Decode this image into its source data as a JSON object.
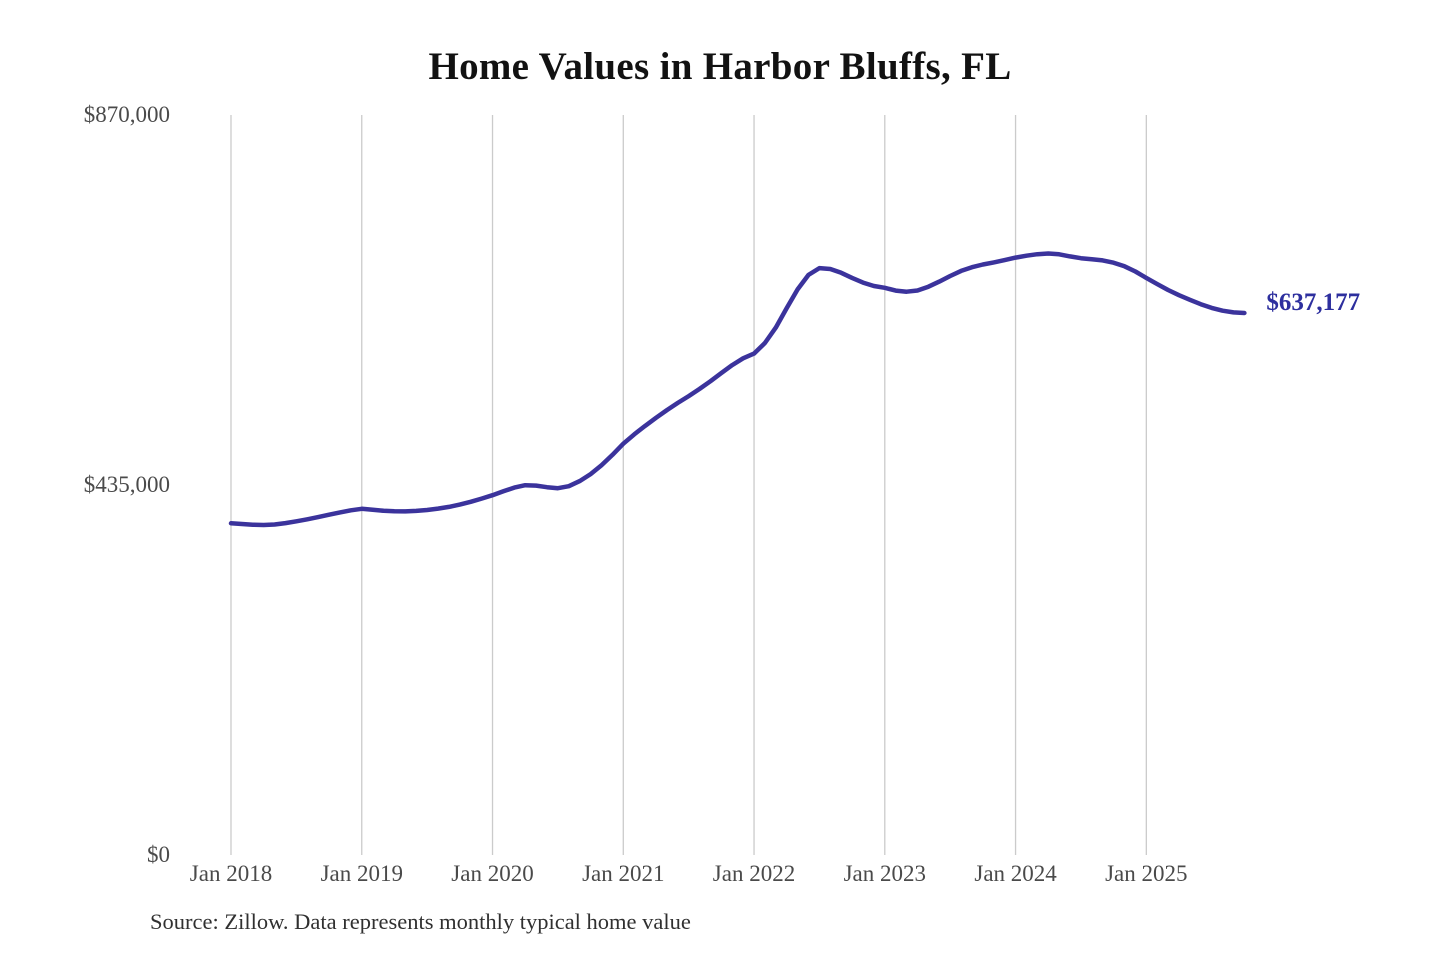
{
  "title": "Home Values in Harbor Bluffs, FL",
  "source_note": "Source: Zillow. Data represents monthly typical home value",
  "colors": {
    "line": "#3b339c",
    "end_label": "#2d2f9e",
    "gridline": "#cbcbcb",
    "title": "#121212",
    "axis_label": "#4a4a4a",
    "source": "#303030",
    "background": "#ffffff"
  },
  "chart_data": {
    "type": "line",
    "title": "Home Values in Harbor Bluffs, FL",
    "xlabel": "",
    "ylabel": "",
    "legend": "none",
    "grid": "vertical-only",
    "ylim": [
      0,
      870000
    ],
    "y_ticks": [
      {
        "label": "$0",
        "value": 0
      },
      {
        "label": "$435,000",
        "value": 435000
      },
      {
        "label": "$870,000",
        "value": 870000
      }
    ],
    "x_tick_labels": [
      "Jan 2018",
      "Jan 2019",
      "Jan 2020",
      "Jan 2021",
      "Jan 2022",
      "Jan 2023",
      "Jan 2024",
      "Jan 2025"
    ],
    "final_value": 637177,
    "final_value_label": "$637,177",
    "months": [
      "Jan 2018",
      "Feb 2018",
      "Mar 2018",
      "Apr 2018",
      "May 2018",
      "Jun 2018",
      "Jul 2018",
      "Aug 2018",
      "Sep 2018",
      "Oct 2018",
      "Nov 2018",
      "Dec 2018",
      "Jan 2019",
      "Feb 2019",
      "Mar 2019",
      "Apr 2019",
      "May 2019",
      "Jun 2019",
      "Jul 2019",
      "Aug 2019",
      "Sep 2019",
      "Oct 2019",
      "Nov 2019",
      "Dec 2019",
      "Jan 2020",
      "Feb 2020",
      "Mar 2020",
      "Apr 2020",
      "May 2020",
      "Jun 2020",
      "Jul 2020",
      "Aug 2020",
      "Sep 2020",
      "Oct 2020",
      "Nov 2020",
      "Dec 2020",
      "Jan 2021",
      "Feb 2021",
      "Mar 2021",
      "Apr 2021",
      "May 2021",
      "Jun 2021",
      "Jul 2021",
      "Aug 2021",
      "Sep 2021",
      "Oct 2021",
      "Nov 2021",
      "Dec 2021",
      "Jan 2022",
      "Feb 2022",
      "Mar 2022",
      "Apr 2022",
      "May 2022",
      "Jun 2022",
      "Jul 2022",
      "Aug 2022",
      "Sep 2022",
      "Oct 2022",
      "Nov 2022",
      "Dec 2022",
      "Jan 2023",
      "Feb 2023",
      "Mar 2023",
      "Apr 2023",
      "May 2023",
      "Jun 2023",
      "Jul 2023",
      "Aug 2023",
      "Sep 2023",
      "Oct 2023",
      "Nov 2023",
      "Dec 2023",
      "Jan 2024",
      "Feb 2024",
      "Mar 2024",
      "Apr 2024",
      "May 2024",
      "Jun 2024",
      "Jul 2024",
      "Aug 2024",
      "Sep 2024",
      "Oct 2024",
      "Nov 2024",
      "Dec 2024",
      "Jan 2025",
      "Feb 2025",
      "Mar 2025",
      "Apr 2025",
      "May 2025",
      "Jun 2025",
      "Jul 2025",
      "Aug 2025",
      "Sep 2025",
      "Oct 2025"
    ],
    "values": [
      390000,
      389100,
      388300,
      388000,
      388600,
      390200,
      392300,
      394700,
      397300,
      400100,
      402800,
      405200,
      407000,
      405800,
      404700,
      404100,
      404000,
      404500,
      405600,
      407200,
      409300,
      411900,
      415200,
      419000,
      423000,
      427600,
      431900,
      434800,
      434300,
      432400,
      431200,
      433600,
      439600,
      447800,
      458300,
      470400,
      483500,
      494500,
      504500,
      514000,
      523000,
      531500,
      539500,
      548000,
      557000,
      566500,
      576000,
      584000,
      589500,
      602000,
      620000,
      643000,
      665000,
      682000,
      690000,
      689000,
      684500,
      678500,
      673000,
      669000,
      666800,
      663600,
      662200,
      663700,
      668100,
      674100,
      680700,
      686700,
      691100,
      694200,
      696700,
      699400,
      702300,
      704600,
      706300,
      707200,
      706200,
      703800,
      701600,
      700400,
      699000,
      696400,
      692100,
      686000,
      678500,
      671200,
      664300,
      658200,
      652700,
      647600,
      643200,
      639900,
      637900,
      637177
    ]
  }
}
